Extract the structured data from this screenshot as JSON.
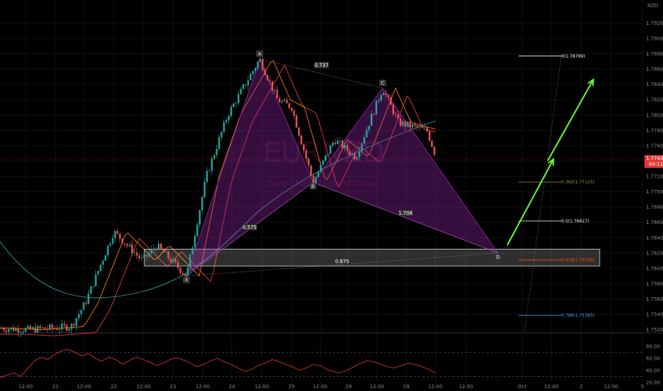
{
  "currency": "NZD",
  "watermark": {
    "symbol": "EURNZD",
    "subtitle": "Euro / New Zealand Dollar"
  },
  "colors": {
    "bull": "#26a69a",
    "bear": "#ef5350",
    "pattern": "#9c27b0",
    "ema_fast": "#f57c00",
    "ema_mid": "#e53935",
    "ema_slow": "#26a69a",
    "rsi": "#e53935",
    "arrow": "#66ff33",
    "price_tag": "#e53935"
  },
  "chart_data": [
    {
      "type": "candlestick",
      "title": "",
      "ylim": [
        1.7516,
        1.795
      ],
      "yticks": [
        "1.79200",
        "1.79000",
        "1.78800",
        "1.78600",
        "1.78400",
        "1.78200",
        "1.78000",
        "1.77800",
        "1.77600",
        "1.77400",
        "1.77200",
        "1.77000",
        "1.76800",
        "1.76600",
        "1.76400",
        "1.76200",
        "1.76000",
        "1.75800",
        "1.75600",
        "1.75400",
        "1.75200"
      ],
      "xticks": [
        "12:00",
        "21",
        "12:00",
        "22",
        "12:00",
        "23",
        "12:00",
        "24",
        "12:00",
        "25",
        "12:00",
        "28",
        "12:00",
        "29",
        "12:00",
        "12:00",
        "Oct",
        "12:00",
        "2",
        "12:00",
        "5"
      ],
      "last_price": "1.77430",
      "countdown": "04:11",
      "harmonic_pattern": {
        "points": [
          {
            "label": "X",
            "price": 1.759
          },
          {
            "label": "A",
            "price": 1.7873
          },
          {
            "label": "B",
            "price": 1.7712
          },
          {
            "label": "C",
            "price": 1.7835
          },
          {
            "label": "D",
            "price": 1.762
          }
        ],
        "ratios": [
          "0.737",
          "0.575",
          "1.708",
          "0.875"
        ]
      },
      "fib_levels": [
        {
          "label": "0(1.78769)",
          "value": 1.78769,
          "color": "#ffffff"
        },
        {
          "label": "0.382(1.77125)",
          "value": 1.77125,
          "color": "#9e9d24"
        },
        {
          "label": "0.5(1.76617)",
          "value": 1.76617,
          "color": "#ffffff"
        },
        {
          "label": "0.618(1.76109)",
          "value": 1.76109,
          "color": "#e65100"
        },
        {
          "label": "0.786(1.75385)",
          "value": 1.75385,
          "color": "#42a5f5"
        }
      ],
      "demand_zone": {
        "top": 1.7625,
        "bottom": 1.7603
      }
    },
    {
      "type": "line",
      "title": "",
      "ylim": [
        20,
        100
      ],
      "yticks": [
        "80.00",
        "60.00",
        "40.00",
        "20.00"
      ],
      "bands": [
        70,
        30
      ],
      "series": [
        {
          "values": [
            28,
            32,
            36,
            30,
            42,
            55,
            62,
            58,
            66,
            72,
            75,
            70,
            64,
            68,
            60,
            55,
            62,
            58,
            50,
            56,
            62,
            58,
            54,
            48,
            52,
            58,
            61,
            57,
            52,
            46,
            50,
            56,
            60,
            54,
            50,
            44,
            38,
            42,
            48,
            52,
            58,
            55,
            50,
            46,
            40,
            44,
            50,
            48,
            42,
            38,
            36,
            40,
            46,
            52,
            56,
            54,
            50,
            46,
            44,
            48,
            52,
            50,
            46,
            42,
            36
          ]
        }
      ]
    }
  ]
}
